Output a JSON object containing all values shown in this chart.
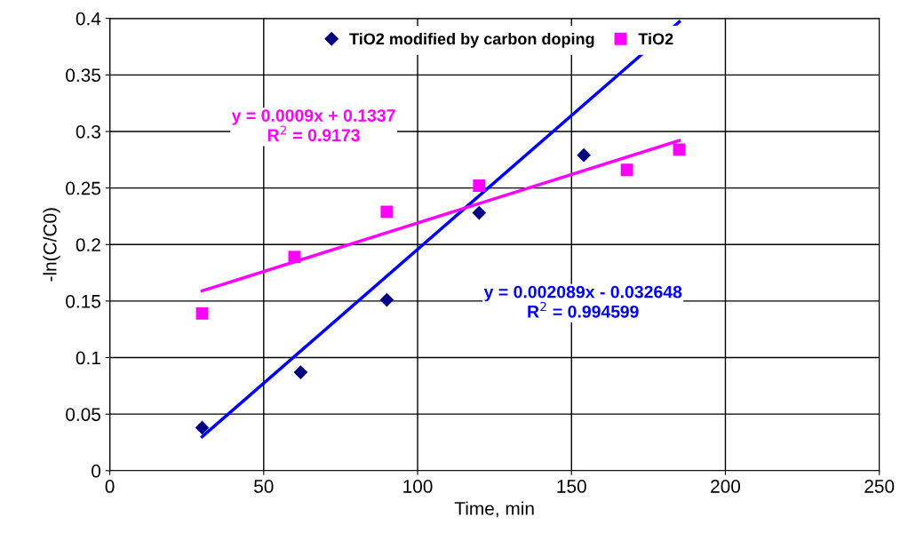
{
  "chart_data": {
    "type": "scatter",
    "xlabel": "Time, min",
    "ylabel": "-ln(C/C0)",
    "xlim": [
      0,
      250
    ],
    "ylim": [
      0,
      0.4
    ],
    "xticks": [
      0,
      50,
      100,
      150,
      200,
      250
    ],
    "yticks": [
      0,
      0.05,
      0.1,
      0.15,
      0.2,
      0.25,
      0.3,
      0.35,
      0.4
    ],
    "grid": true,
    "legend": "top",
    "series": [
      {
        "name": "TiO2 modified by carbon doping",
        "color": "#000080",
        "marker": "diamond",
        "x": [
          30,
          62,
          90,
          120,
          154
        ],
        "values": [
          0.038,
          0.087,
          0.151,
          0.228,
          0.279
        ]
      },
      {
        "name": "TiO2",
        "color": "#ff00ff",
        "marker": "square",
        "x": [
          30,
          60,
          90,
          120,
          168,
          185
        ],
        "values": [
          0.139,
          0.189,
          0.229,
          0.252,
          0.266,
          0.284
        ]
      },
      {
        "type": "line",
        "color": "#0000ff",
        "x": [
          30,
          185
        ],
        "values": [
          0.03,
          0.397
        ]
      },
      {
        "type": "line",
        "color": "#ff00ff",
        "x": [
          30,
          185
        ],
        "values": [
          0.159,
          0.292
        ]
      }
    ],
    "annotations": [
      "y = 0.0009x + 0.1337\nR$^{2}$ = 0.9173",
      "y = 0.002089x - 0.032648\nR$^{2}$ = 0.994599"
    ]
  }
}
